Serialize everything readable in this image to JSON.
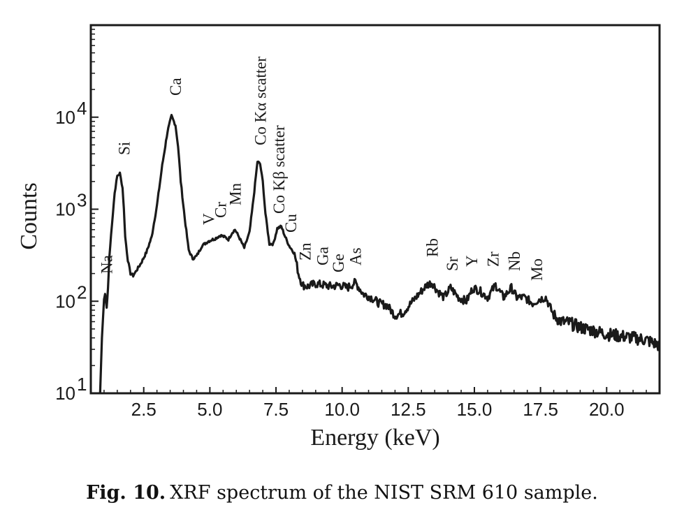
{
  "chart_data": {
    "type": "line",
    "title": "",
    "xlabel": "Energy (keV)",
    "ylabel": "Counts",
    "xscale": "linear",
    "yscale": "log",
    "xlim": [
      0.5,
      22.0
    ],
    "ylim": [
      10,
      100000
    ],
    "grid": false,
    "x_ticks": [
      2.5,
      5.0,
      7.5,
      10.0,
      12.5,
      15.0,
      17.5,
      20.0
    ],
    "x_tick_labels": [
      "2.5",
      "5.0",
      "7.5",
      "10.0",
      "12.5",
      "15.0",
      "17.5",
      "20.0"
    ],
    "y_ticks": [
      {
        "value": 10,
        "base": "10",
        "exp": "1"
      },
      {
        "value": 100,
        "base": "10",
        "exp": "2"
      },
      {
        "value": 1000,
        "base": "10",
        "exp": "3"
      },
      {
        "value": 10000,
        "base": "10",
        "exp": "4"
      }
    ],
    "series": [
      {
        "name": "NIST SRM 610 XRF spectrum",
        "color": "#1a1a1a",
        "x": [
          0.85,
          0.92,
          1.0,
          1.04,
          1.1,
          1.15,
          1.2,
          1.3,
          1.4,
          1.5,
          1.6,
          1.7,
          1.75,
          1.8,
          1.9,
          2.0,
          2.1,
          2.2,
          2.4,
          2.6,
          2.8,
          3.0,
          3.2,
          3.4,
          3.55,
          3.7,
          3.8,
          3.9,
          4.05,
          4.2,
          4.35,
          4.5,
          4.7,
          4.95,
          5.2,
          5.4,
          5.55,
          5.7,
          5.85,
          5.95,
          6.1,
          6.3,
          6.5,
          6.65,
          6.8,
          6.9,
          7.0,
          7.1,
          7.25,
          7.4,
          7.55,
          7.7,
          7.85,
          8.0,
          8.2,
          8.35,
          8.5,
          8.7,
          9.0,
          9.3,
          9.6,
          9.9,
          10.2,
          10.5,
          10.8,
          11.1,
          11.4,
          11.7,
          12.0,
          12.3,
          12.6,
          12.9,
          13.2,
          13.4,
          13.6,
          13.85,
          14.1,
          14.4,
          14.7,
          14.95,
          15.2,
          15.5,
          15.8,
          16.1,
          16.4,
          16.6,
          16.9,
          17.2,
          17.45,
          17.7,
          18.0,
          18.3,
          18.6,
          19.0,
          19.5,
          20.0,
          20.5,
          21.0,
          21.5,
          22.0
        ],
        "y": [
          10,
          40,
          105,
          120,
          85,
          140,
          300,
          700,
          1500,
          2300,
          2450,
          1700,
          1000,
          500,
          280,
          200,
          190,
          210,
          260,
          340,
          500,
          1100,
          3000,
          7000,
          10300,
          8200,
          4800,
          2000,
          800,
          360,
          290,
          310,
          400,
          450,
          480,
          520,
          500,
          470,
          560,
          600,
          500,
          380,
          560,
          1300,
          3300,
          3100,
          2000,
          900,
          420,
          420,
          620,
          650,
          500,
          400,
          330,
          200,
          150,
          145,
          155,
          150,
          145,
          150,
          140,
          160,
          120,
          110,
          95,
          90,
          70,
          75,
          95,
          120,
          150,
          160,
          130,
          110,
          140,
          110,
          100,
          140,
          130,
          110,
          150,
          110,
          140,
          110,
          110,
          95,
          105,
          110,
          70,
          60,
          58,
          52,
          48,
          44,
          42,
          40,
          38,
          33
        ]
      }
    ],
    "annotations": [
      {
        "text": "Na",
        "x": 1.1
      },
      {
        "text": "Si",
        "x": 1.75
      },
      {
        "text": "Ca",
        "x": 3.7
      },
      {
        "text": "V",
        "x": 4.95
      },
      {
        "text": "Cr",
        "x": 5.4
      },
      {
        "text": "Mn",
        "x": 5.95
      },
      {
        "text": "Co Kα scatter",
        "x": 6.9
      },
      {
        "text": "Co Kβ scatter",
        "x": 7.6
      },
      {
        "text": "Cu",
        "x": 8.05
      },
      {
        "text": "Zn",
        "x": 8.6
      },
      {
        "text": "Ga",
        "x": 9.25
      },
      {
        "text": "Ge",
        "x": 9.85
      },
      {
        "text": "As",
        "x": 10.5
      },
      {
        "text": "Rb",
        "x": 13.4
      },
      {
        "text": "Sr",
        "x": 14.15
      },
      {
        "text": "Y",
        "x": 14.9
      },
      {
        "text": "Zr",
        "x": 15.7
      },
      {
        "text": "Nb",
        "x": 16.5
      },
      {
        "text": "Mo",
        "x": 17.35
      }
    ]
  },
  "caption": {
    "label": "Fig. 10.",
    "text": "XRF spectrum of the NIST SRM 610 sample."
  }
}
